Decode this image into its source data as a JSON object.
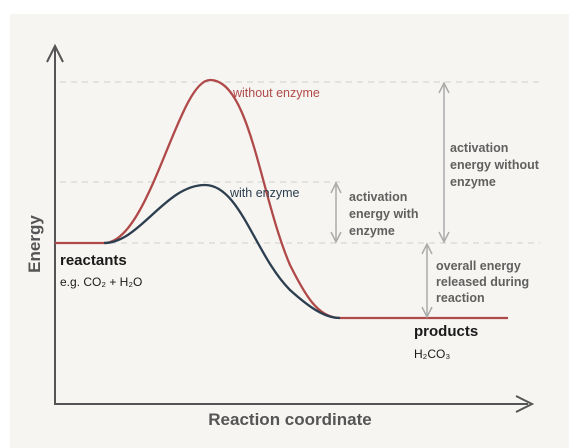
{
  "colors": {
    "background": "#f6f5f1",
    "page": "#ffffff",
    "axis": "#555555",
    "curve_without": "#b04a4a",
    "curve_with": "#2c3e4f",
    "annotation": "#aaaaaa",
    "dashed": "#cfcfcf"
  },
  "axes": {
    "x_label": "Reaction coordinate",
    "y_label": "Energy"
  },
  "curves": {
    "without_enzyme": "without enzyme",
    "with_enzyme": "with enzyme"
  },
  "annotations": {
    "activation_without": [
      "activation",
      "energy without",
      "enzyme"
    ],
    "activation_with": [
      "activation",
      "energy with",
      "enzyme"
    ],
    "overall_energy": [
      "overall energy",
      "released during",
      "reaction"
    ]
  },
  "states": {
    "reactants": {
      "title": "reactants",
      "formula": "e.g. CO₂ + H₂O"
    },
    "products": {
      "title": "products",
      "formula": "H₂CO₃"
    }
  }
}
